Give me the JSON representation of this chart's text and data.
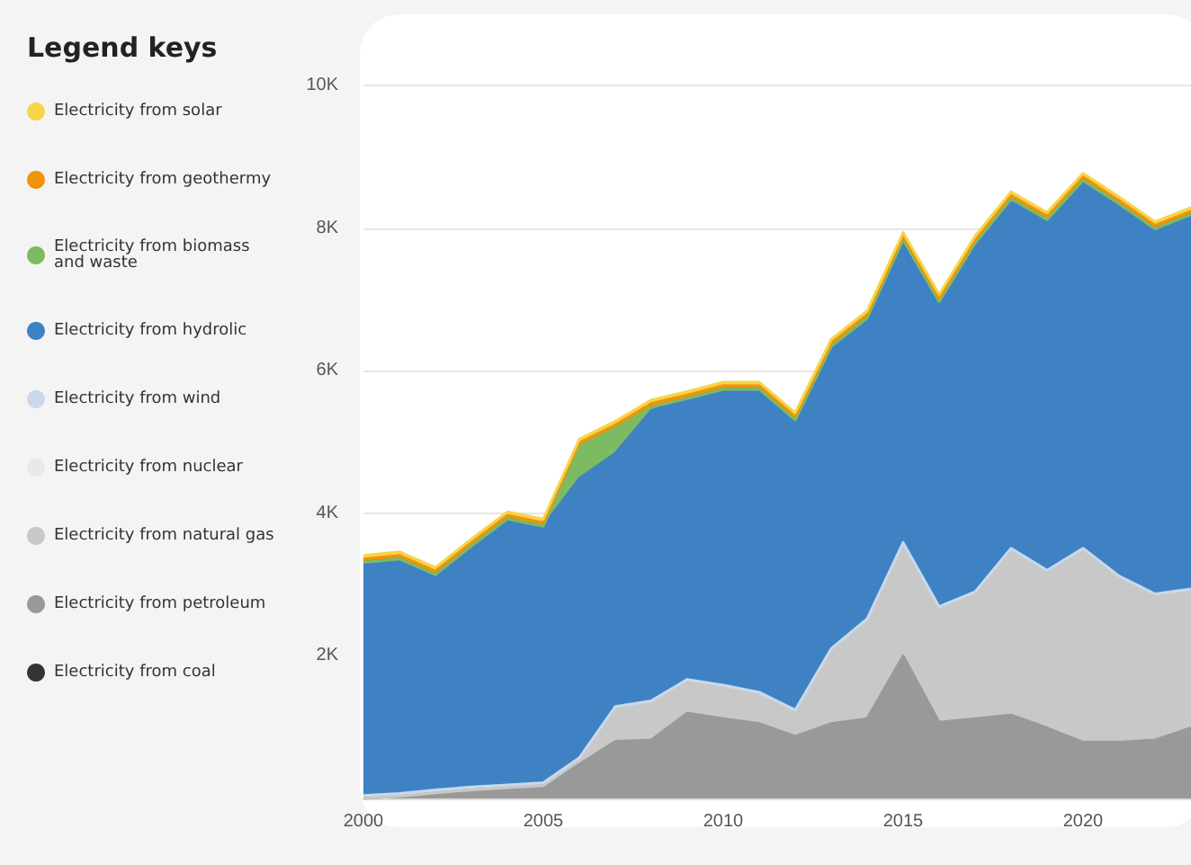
{
  "chart_data": {
    "type": "area",
    "stacked": true,
    "legend_title": "Legend keys",
    "legend": "left",
    "grid": "y",
    "marker": "none",
    "x": [
      2000,
      2001,
      2002,
      2003,
      2004,
      2005,
      2006,
      2007,
      2008,
      2009,
      2010,
      2011,
      2012,
      2013,
      2014,
      2015,
      2016,
      2017,
      2018,
      2019,
      2020,
      2021,
      2022,
      2023
    ],
    "xlim": [
      2000,
      2023
    ],
    "xticks": [
      2000,
      2005,
      2010,
      2015,
      2020
    ],
    "ylim": [
      0,
      11000
    ],
    "yticks": [
      {
        "value": 2000,
        "label": "2K"
      },
      {
        "value": 4000,
        "label": "4K"
      },
      {
        "value": 6000,
        "label": "6K"
      },
      {
        "value": 8000,
        "label": "8K"
      },
      {
        "value": 10000,
        "label": "10K"
      }
    ],
    "series": [
      {
        "name": "Electricity from coal",
        "color": "#333333",
        "values": [
          null,
          null,
          null,
          null,
          null,
          null,
          null,
          null,
          null,
          null,
          null,
          null,
          null,
          null,
          null,
          null,
          null,
          null,
          null,
          null,
          null,
          null,
          null,
          null
        ]
      },
      {
        "name": "Electricity from petroleum",
        "color": "#999999",
        "values": [
          0,
          30,
          80,
          120,
          150,
          180,
          480,
          800,
          820,
          1200,
          1120,
          1050,
          870,
          1050,
          1120,
          2000,
          1070,
          1120,
          1170,
          990,
          790,
          790,
          820,
          990
        ]
      },
      {
        "name": "Electricity from natural gas",
        "color": "#c8c8c8",
        "values": [
          0,
          0,
          0,
          0,
          0,
          0,
          50,
          450,
          510,
          430,
          430,
          400,
          330,
          1010,
          1360,
          1550,
          1580,
          1740,
          2300,
          2170,
          2680,
          2290,
          2010,
          1910
        ]
      },
      {
        "name": "Electricity from nuclear",
        "color": "#e8e8e8",
        "values": [
          null,
          null,
          null,
          null,
          null,
          null,
          null,
          null,
          null,
          null,
          null,
          null,
          null,
          null,
          null,
          null,
          null,
          null,
          null,
          null,
          null,
          null,
          null,
          null
        ]
      },
      {
        "name": "Electricity from wind",
        "color": "#c9d9ea",
        "values": [
          40,
          40,
          40,
          40,
          40,
          40,
          40,
          40,
          40,
          40,
          40,
          40,
          40,
          40,
          40,
          40,
          40,
          40,
          40,
          40,
          40,
          40,
          40,
          40
        ]
      },
      {
        "name": "Electricity from hydrolic",
        "color": "#3e82c4",
        "values": [
          3270,
          3290,
          3020,
          3380,
          3730,
          3600,
          3920,
          3550,
          4070,
          3940,
          4150,
          4250,
          4070,
          4240,
          4220,
          4250,
          4280,
          4890,
          4900,
          4920,
          5160,
          5220,
          5120,
          5250
        ]
      },
      {
        "name": "Electricity from biomass and waste",
        "color": "#7dbb62",
        "values": [
          0,
          0,
          0,
          0,
          0,
          0,
          450,
          350,
          50,
          0,
          0,
          0,
          0,
          0,
          0,
          0,
          0,
          0,
          0,
          0,
          0,
          0,
          0,
          0
        ]
      },
      {
        "name": "Electricity from geothermy",
        "color": "#f0940a",
        "values": [
          50,
          50,
          50,
          50,
          50,
          50,
          50,
          50,
          50,
          50,
          50,
          50,
          50,
          50,
          50,
          50,
          50,
          50,
          50,
          50,
          50,
          50,
          50,
          50
        ]
      },
      {
        "name": "Electricity from solar",
        "color": "#f5d54a",
        "values": [
          50,
          50,
          50,
          50,
          50,
          50,
          50,
          50,
          50,
          50,
          50,
          50,
          50,
          50,
          50,
          50,
          50,
          50,
          50,
          50,
          50,
          50,
          50,
          50
        ]
      }
    ]
  }
}
